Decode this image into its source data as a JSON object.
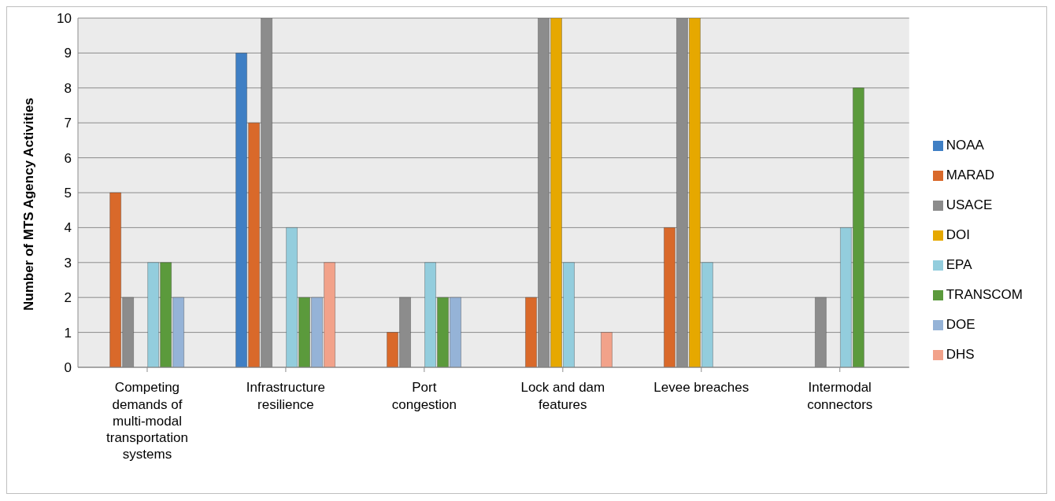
{
  "chart_data": {
    "type": "bar",
    "ylabel": "Number of MTS Agency Activities",
    "categories": [
      "Competing demands of multi-modal transportation systems",
      "Infrastructure resilience",
      "Port congestion",
      "Lock and dam features",
      "Levee breaches",
      "Intermodal connectors"
    ],
    "series": [
      {
        "name": "NOAA",
        "color": "#3f7fc4",
        "values": [
          0,
          9,
          0,
          0,
          0,
          0
        ]
      },
      {
        "name": "MARAD",
        "color": "#d9692a",
        "values": [
          5,
          7,
          1,
          2,
          4,
          0
        ]
      },
      {
        "name": "USACE",
        "color": "#8c8c8c",
        "values": [
          2,
          10,
          2,
          10,
          10,
          2
        ]
      },
      {
        "name": "DOI",
        "color": "#e6a800",
        "values": [
          0,
          0,
          0,
          10,
          10,
          0
        ]
      },
      {
        "name": "EPA",
        "color": "#93cddd",
        "values": [
          3,
          4,
          3,
          3,
          3,
          4
        ]
      },
      {
        "name": "TRANSCOM",
        "color": "#5b9a3c",
        "values": [
          3,
          2,
          2,
          0,
          0,
          8
        ]
      },
      {
        "name": "DOE",
        "color": "#95b3d7",
        "values": [
          2,
          2,
          2,
          0,
          0,
          0
        ]
      },
      {
        "name": "DHS",
        "color": "#f2a28a",
        "values": [
          0,
          3,
          0,
          1,
          0,
          0
        ]
      }
    ],
    "ylim": [
      0,
      10
    ],
    "yticks": [
      0,
      1,
      2,
      3,
      4,
      5,
      6,
      7,
      8,
      9,
      10
    ],
    "grid": "y",
    "legend": "right"
  }
}
